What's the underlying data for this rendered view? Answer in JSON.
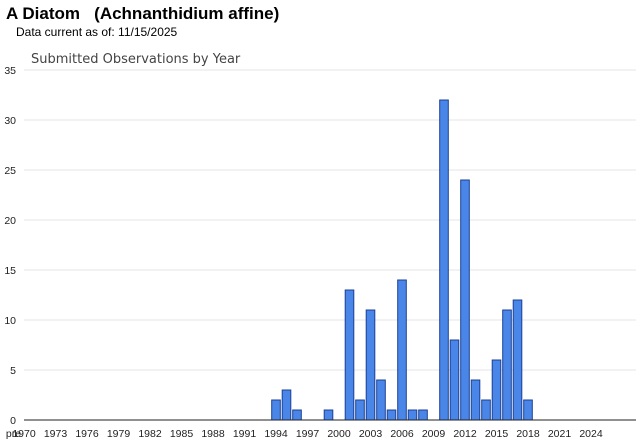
{
  "header": {
    "species_title": "A Diatom   (Achnanthidium affine)",
    "currency_note": "Data current as of: 11/15/2025"
  },
  "chart_data": {
    "type": "bar",
    "title": "Submitted Observations by Year",
    "xlabel": "",
    "ylabel": "",
    "ylim": [
      0,
      35
    ],
    "yticks": [
      0,
      5,
      10,
      15,
      20,
      25,
      30,
      35
    ],
    "grid": true,
    "legend": "none",
    "bar_color": "#4a86e8",
    "bar_border_color": "#1c3f94",
    "x_tick_labels": [
      "pre",
      "1970",
      "1973",
      "1976",
      "1979",
      "1982",
      "1985",
      "1988",
      "1991",
      "1994",
      "1997",
      "2000",
      "2003",
      "2006",
      "2009",
      "2012",
      "2015",
      "2018",
      "2021",
      "2024"
    ],
    "categories": [
      "pre",
      "1970",
      "1971",
      "1972",
      "1973",
      "1974",
      "1975",
      "1976",
      "1977",
      "1978",
      "1979",
      "1980",
      "1981",
      "1982",
      "1983",
      "1984",
      "1985",
      "1986",
      "1987",
      "1988",
      "1989",
      "1990",
      "1991",
      "1992",
      "1993",
      "1994",
      "1995",
      "1996",
      "1997",
      "1998",
      "1999",
      "2000",
      "2001",
      "2002",
      "2003",
      "2004",
      "2005",
      "2006",
      "2007",
      "2008",
      "2009",
      "2010",
      "2011",
      "2012",
      "2013",
      "2014",
      "2015",
      "2016",
      "2017",
      "2018",
      "2019",
      "2020",
      "2021",
      "2022",
      "2023",
      "2024",
      "2025"
    ],
    "values": [
      0,
      0,
      0,
      0,
      0,
      0,
      0,
      0,
      0,
      0,
      0,
      0,
      0,
      0,
      0,
      0,
      0,
      0,
      0,
      0,
      0,
      0,
      0,
      0,
      0,
      2,
      3,
      1,
      0,
      0,
      1,
      0,
      13,
      2,
      11,
      4,
      1,
      14,
      1,
      1,
      0,
      32,
      8,
      24,
      4,
      2,
      6,
      11,
      12,
      2,
      0,
      0,
      0,
      0,
      0,
      0,
      0
    ]
  }
}
